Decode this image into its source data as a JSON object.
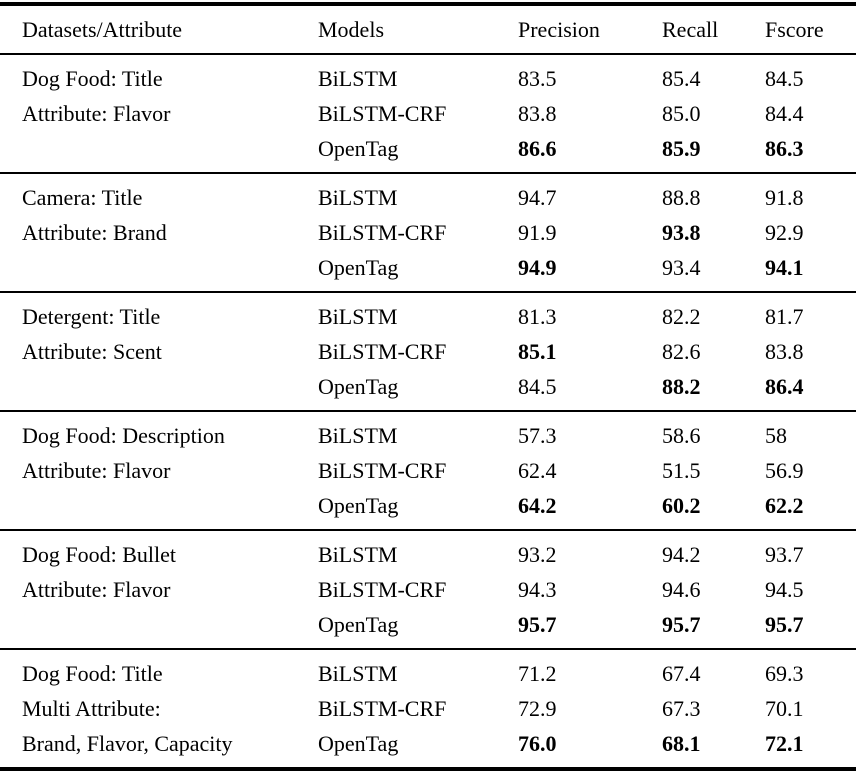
{
  "table": {
    "columns": [
      "Datasets/Attribute",
      "Models",
      "Precision",
      "Recall",
      "Fscore"
    ],
    "sections": [
      {
        "dataset_lines": [
          "Dog Food: Title",
          "Attribute: Flavor",
          ""
        ],
        "rows": [
          {
            "model": "BiLSTM",
            "cells": [
              {
                "text": "83.5",
                "style": "num"
              },
              {
                "text": "85.4",
                "style": "num"
              },
              {
                "text": "84.5",
                "style": "num"
              }
            ]
          },
          {
            "model": "BiLSTM-CRF",
            "cells": [
              {
                "text": "83.8",
                "style": "num"
              },
              {
                "text": "85.0",
                "style": "num"
              },
              {
                "text": "84.4",
                "style": "num"
              }
            ]
          },
          {
            "model": "OpenTag",
            "cells": [
              {
                "text": "86.6",
                "style": "num bold"
              },
              {
                "text": "85.9",
                "style": "num bold"
              },
              {
                "text": "86.3",
                "style": "num bold"
              }
            ]
          }
        ]
      },
      {
        "dataset_lines": [
          "Camera: Title",
          "Attribute: Brand",
          ""
        ],
        "rows": [
          {
            "model": "BiLSTM",
            "cells": [
              {
                "text": "94.7",
                "style": "num"
              },
              {
                "text": "88.8",
                "style": "num"
              },
              {
                "text": "91.8",
                "style": "num"
              }
            ]
          },
          {
            "model": "BiLSTM-CRF",
            "cells": [
              {
                "text": "91.9",
                "style": "num"
              },
              {
                "text": "93.8",
                "style": "num bold"
              },
              {
                "text": "92.9",
                "style": "num"
              }
            ]
          },
          {
            "model": "OpenTag",
            "cells": [
              {
                "text": "94.9",
                "style": "num bold"
              },
              {
                "text": "93.4",
                "style": "num"
              },
              {
                "text": "94.1",
                "style": "num bold"
              }
            ]
          }
        ]
      },
      {
        "dataset_lines": [
          "Detergent: Title",
          "Attribute: Scent",
          ""
        ],
        "rows": [
          {
            "model": "BiLSTM",
            "cells": [
              {
                "text": "81.3",
                "style": "num"
              },
              {
                "text": "82.2",
                "style": "num"
              },
              {
                "text": "81.7",
                "style": "num"
              }
            ]
          },
          {
            "model": "BiLSTM-CRF",
            "cells": [
              {
                "text": "85.1",
                "style": "num bold"
              },
              {
                "text": "82.6",
                "style": "num"
              },
              {
                "text": "83.8",
                "style": "num"
              }
            ]
          },
          {
            "model": "OpenTag",
            "cells": [
              {
                "text": "84.5",
                "style": "num"
              },
              {
                "text": "88.2",
                "style": "num bold"
              },
              {
                "text": "86.4",
                "style": "num bold"
              }
            ]
          }
        ]
      },
      {
        "dataset_lines": [
          "Dog Food: Description",
          "Attribute: Flavor",
          ""
        ],
        "rows": [
          {
            "model": "BiLSTM",
            "cells": [
              {
                "text": "57.3",
                "style": "num"
              },
              {
                "text": "58.6",
                "style": "num"
              },
              {
                "text": "58",
                "style": "num"
              }
            ]
          },
          {
            "model": "BiLSTM-CRF",
            "cells": [
              {
                "text": "62.4",
                "style": "num"
              },
              {
                "text": "51.5",
                "style": "num"
              },
              {
                "text": "56.9",
                "style": "num"
              }
            ]
          },
          {
            "model": "OpenTag",
            "cells": [
              {
                "text": "64.2",
                "style": "num bold"
              },
              {
                "text": "60.2",
                "style": "num bold"
              },
              {
                "text": "62.2",
                "style": "num bold"
              }
            ]
          }
        ]
      },
      {
        "dataset_lines": [
          "Dog Food: Bullet",
          "Attribute: Flavor",
          ""
        ],
        "rows": [
          {
            "model": "BiLSTM",
            "cells": [
              {
                "text": "93.2",
                "style": "num"
              },
              {
                "text": "94.2",
                "style": "num"
              },
              {
                "text": "93.7",
                "style": "num"
              }
            ]
          },
          {
            "model": "BiLSTM-CRF",
            "cells": [
              {
                "text": "94.3",
                "style": "num"
              },
              {
                "text": "94.6",
                "style": "num"
              },
              {
                "text": "94.5",
                "style": "num"
              }
            ]
          },
          {
            "model": "OpenTag",
            "cells": [
              {
                "text": "95.7",
                "style": "num bold"
              },
              {
                "text": "95.7",
                "style": "num bold"
              },
              {
                "text": "95.7",
                "style": "num bold"
              }
            ]
          }
        ]
      },
      {
        "dataset_lines": [
          "Dog Food: Title",
          "Multi Attribute:",
          "Brand, Flavor, Capacity"
        ],
        "rows": [
          {
            "model": "BiLSTM",
            "cells": [
              {
                "text": "71.2",
                "style": "num"
              },
              {
                "text": "67.4",
                "style": "num"
              },
              {
                "text": "69.3",
                "style": "num"
              }
            ]
          },
          {
            "model": "BiLSTM-CRF",
            "cells": [
              {
                "text": "72.9",
                "style": "num"
              },
              {
                "text": "67.3",
                "style": "num"
              },
              {
                "text": "70.1",
                "style": "num"
              }
            ]
          },
          {
            "model": "OpenTag",
            "cells": [
              {
                "text": "76.0",
                "style": "num bold"
              },
              {
                "text": "68.1",
                "style": "num bold"
              },
              {
                "text": "72.1",
                "style": "num bold"
              }
            ]
          }
        ]
      }
    ],
    "colors": {
      "rule": "#000000",
      "text": "#000000",
      "background": "#ffffff"
    }
  }
}
